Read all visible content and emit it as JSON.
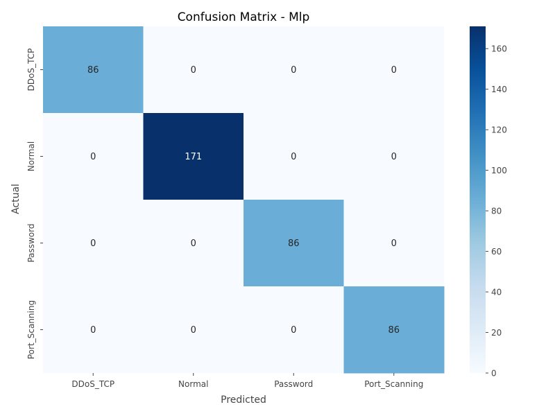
{
  "chart_data": {
    "type": "heatmap",
    "title": "Confusion Matrix - Mlp",
    "xlabel": "Predicted",
    "ylabel": "Actual",
    "x_categories": [
      "DDoS_TCP",
      "Normal",
      "Password",
      "Port_Scanning"
    ],
    "y_categories": [
      "DDoS_TCP",
      "Normal",
      "Password",
      "Port_Scanning"
    ],
    "values": [
      [
        86,
        0,
        0,
        0
      ],
      [
        0,
        171,
        0,
        0
      ],
      [
        0,
        0,
        86,
        0
      ],
      [
        0,
        0,
        0,
        86
      ]
    ],
    "colorbar": {
      "colormap": "Blues",
      "range": [
        0,
        171
      ],
      "ticks": [
        0,
        20,
        40,
        60,
        80,
        100,
        120,
        140,
        160
      ]
    },
    "annotated": true,
    "grid": false
  }
}
